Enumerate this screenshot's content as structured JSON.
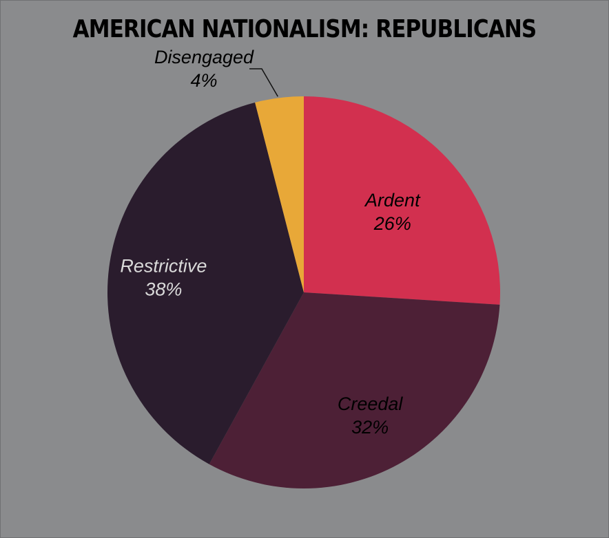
{
  "chart_data": {
    "type": "pie",
    "title": "AMERICAN NATIONALISM: REPUBLICANS",
    "start_angle_deg": 0,
    "direction": "clockwise",
    "slices": [
      {
        "label": "Ardent",
        "value": 26,
        "display": "26%",
        "color": "#d2304f",
        "text_color": "#000000"
      },
      {
        "label": "Creedal",
        "value": 32,
        "display": "32%",
        "color": "#4d2036",
        "text_color": "#000000"
      },
      {
        "label": "Restrictive",
        "value": 38,
        "display": "38%",
        "color": "#2a1c2d",
        "text_color": "#d9d9d9"
      },
      {
        "label": "Disengaged",
        "value": 4,
        "display": "4%",
        "color": "#e8a838",
        "text_color": "#000000"
      }
    ],
    "legend": "none"
  }
}
